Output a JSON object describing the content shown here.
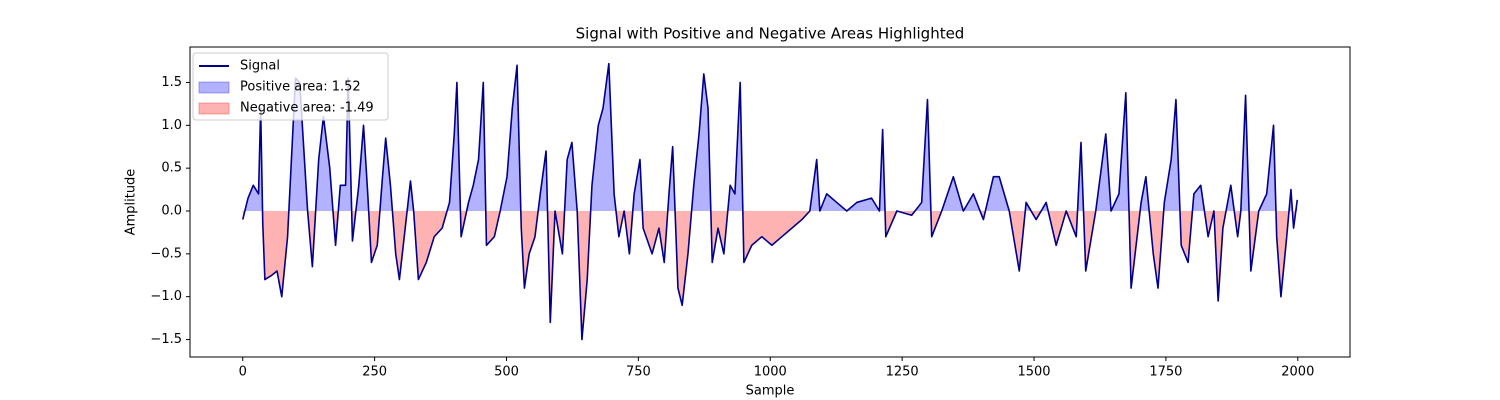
{
  "chart_data": {
    "type": "line",
    "title": "Signal with Positive and Negative Areas Highlighted",
    "x_label": "Sample",
    "y_label": "Amplitude",
    "x": [
      0,
      10,
      20,
      30,
      34,
      38,
      42,
      55,
      65,
      74,
      85,
      100,
      108,
      123,
      132,
      144,
      153,
      165,
      176,
      185,
      195,
      200,
      208,
      220,
      229,
      237,
      244,
      255,
      265,
      271,
      280,
      290,
      297,
      308,
      318,
      324,
      333,
      348,
      363,
      378,
      392,
      401,
      406,
      414,
      428,
      437,
      447,
      456,
      462,
      477,
      488,
      501,
      511,
      520,
      528,
      534,
      543,
      554,
      564,
      575,
      583,
      592,
      606,
      615,
      624,
      634,
      643,
      653,
      662,
      674,
      683,
      694,
      704,
      713,
      723,
      733,
      742,
      753,
      759,
      776,
      789,
      799,
      808,
      815,
      825,
      833,
      844,
      855,
      865,
      874,
      882,
      890,
      901,
      912,
      924,
      933,
      943,
      950,
      965,
      984,
      1003,
      1022,
      1041,
      1060,
      1075,
      1088,
      1094,
      1107,
      1126,
      1145,
      1164,
      1192,
      1207,
      1213,
      1219,
      1240,
      1268,
      1287,
      1298,
      1306,
      1325,
      1347,
      1366,
      1385,
      1404,
      1423,
      1434,
      1453,
      1472,
      1485,
      1504,
      1523,
      1542,
      1561,
      1580,
      1589,
      1598,
      1617,
      1636,
      1646,
      1661,
      1674,
      1684,
      1703,
      1712,
      1726,
      1735,
      1747,
      1760,
      1769,
      1779,
      1792,
      1803,
      1816,
      1830,
      1841,
      1849,
      1858,
      1873,
      1886,
      1892,
      1901,
      1911,
      1926,
      1941,
      1954,
      1960,
      1968,
      1979,
      1987,
      1992,
      1999
    ],
    "series": [
      {
        "name": "Signal",
        "color": "#00008b",
        "values": [
          -0.1,
          0.15,
          0.3,
          0.2,
          1.2,
          -0.15,
          -0.8,
          -0.75,
          -0.7,
          -1.0,
          -0.3,
          1.55,
          1.5,
          0.0,
          -0.65,
          0.6,
          1.1,
          0.5,
          -0.4,
          0.3,
          0.3,
          1.55,
          -0.35,
          0.3,
          1.0,
          0.2,
          -0.6,
          -0.4,
          0.4,
          0.85,
          0.3,
          -0.5,
          -0.8,
          -0.2,
          0.35,
          0.0,
          -0.8,
          -0.6,
          -0.3,
          -0.2,
          0.1,
          0.9,
          1.5,
          -0.3,
          0.1,
          0.3,
          0.6,
          1.5,
          -0.4,
          -0.3,
          0.0,
          0.4,
          1.2,
          1.7,
          -0.2,
          -0.9,
          -0.5,
          -0.3,
          0.2,
          0.7,
          -1.3,
          0.0,
          -0.5,
          0.6,
          0.8,
          0.0,
          -1.5,
          -0.8,
          0.3,
          1.0,
          1.2,
          1.72,
          0.2,
          -0.3,
          0.0,
          -0.5,
          0.2,
          0.6,
          -0.2,
          -0.5,
          -0.2,
          -0.6,
          0.2,
          0.75,
          -0.9,
          -1.1,
          -0.5,
          0.3,
          0.9,
          1.6,
          1.2,
          -0.6,
          -0.2,
          -0.5,
          0.3,
          0.2,
          1.5,
          -0.6,
          -0.4,
          -0.3,
          -0.4,
          -0.3,
          -0.2,
          -0.1,
          0.0,
          0.6,
          0.0,
          0.2,
          0.1,
          0.0,
          0.1,
          0.15,
          0.0,
          0.95,
          -0.3,
          0.0,
          -0.05,
          0.1,
          1.3,
          -0.3,
          0.0,
          0.4,
          0.0,
          0.2,
          -0.1,
          0.4,
          0.4,
          0.0,
          -0.7,
          0.1,
          -0.1,
          0.1,
          -0.4,
          0.0,
          -0.3,
          0.8,
          -0.7,
          0.0,
          0.9,
          0.0,
          0.2,
          1.38,
          -0.9,
          0.1,
          0.4,
          -0.5,
          -0.9,
          0.1,
          0.6,
          1.3,
          -0.4,
          -0.6,
          0.2,
          0.3,
          -0.3,
          0.0,
          -1.05,
          -0.2,
          0.3,
          -0.3,
          0.0,
          1.35,
          -0.7,
          0.0,
          0.2,
          1.0,
          -0.3,
          -1.0,
          -0.3,
          0.25,
          -0.2,
          0.13
        ]
      }
    ],
    "positive_fill": {
      "name": "Positive area: 1.52",
      "color": "#0000ff"
    },
    "negative_fill": {
      "name": "Negative area: -1.49",
      "color": "#ff0000"
    },
    "fill_alpha": 0.3,
    "xlim": [
      -99.95,
      2098.95
    ],
    "ylim": [
      -1.704,
      1.914
    ],
    "xticks": [
      0,
      250,
      500,
      750,
      1000,
      1250,
      1500,
      1750,
      2000
    ],
    "yticks": [
      {
        "value": -1.5,
        "label": "−1.5"
      },
      {
        "value": -1.0,
        "label": "−1.0"
      },
      {
        "value": -0.5,
        "label": "−0.5"
      },
      {
        "value": 0,
        "label": "0.0"
      },
      0.5,
      {
        "value": 1.0,
        "label": "1.0"
      },
      1.5
    ],
    "legend": "upper left",
    "grid": false
  }
}
